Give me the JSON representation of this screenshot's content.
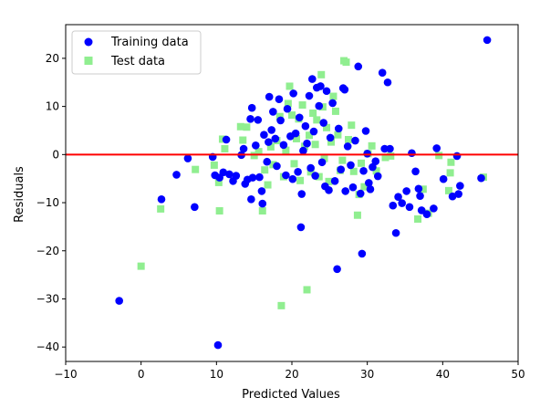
{
  "chart_data": {
    "type": "scatter",
    "title": "",
    "xlabel": "Predicted Values",
    "ylabel": "Residuals",
    "xlim": [
      -10,
      50
    ],
    "ylim": [
      -43,
      27
    ],
    "xticks": [
      -10,
      0,
      10,
      20,
      30,
      40,
      50
    ],
    "yticks": [
      -40,
      -30,
      -20,
      -10,
      0,
      10,
      20
    ],
    "grid": false,
    "legend_position": "top-left",
    "reference_line": {
      "y": 0,
      "color": "#ff0000"
    },
    "series": [
      {
        "name": "Training data",
        "marker": "circle",
        "color": "#0000ff",
        "points": [
          [
            -2.9,
            -30.4
          ],
          [
            2.7,
            -9.3
          ],
          [
            4.7,
            -4.2
          ],
          [
            6.2,
            -0.8
          ],
          [
            7.1,
            -10.9
          ],
          [
            9.5,
            -0.5
          ],
          [
            10.2,
            -39.6
          ],
          [
            9.8,
            -4.3
          ],
          [
            10.4,
            -4.8
          ],
          [
            10.9,
            -3.7
          ],
          [
            11.3,
            3.1
          ],
          [
            11.7,
            -4.1
          ],
          [
            12.2,
            -5.5
          ],
          [
            12.6,
            -4.4
          ],
          [
            13.3,
            -0.1
          ],
          [
            13.6,
            1.2
          ],
          [
            13.8,
            -6.1
          ],
          [
            14.1,
            -5.2
          ],
          [
            14.5,
            7.4
          ],
          [
            14.6,
            -9.3
          ],
          [
            14.8,
            -4.8
          ],
          [
            14.7,
            9.7
          ],
          [
            15.2,
            1.9
          ],
          [
            15.5,
            7.2
          ],
          [
            15.7,
            -4.7
          ],
          [
            16.0,
            -7.6
          ],
          [
            16.1,
            -10.2
          ],
          [
            16.3,
            4.1
          ],
          [
            16.7,
            -1.5
          ],
          [
            16.9,
            2.6
          ],
          [
            17.0,
            12.0
          ],
          [
            17.3,
            5.1
          ],
          [
            17.5,
            8.9
          ],
          [
            17.8,
            3.3
          ],
          [
            18.0,
            -2.4
          ],
          [
            18.3,
            11.5
          ],
          [
            18.5,
            7.1
          ],
          [
            18.9,
            2.0
          ],
          [
            19.2,
            -4.3
          ],
          [
            19.4,
            9.5
          ],
          [
            19.8,
            3.8
          ],
          [
            20.1,
            -5.1
          ],
          [
            20.2,
            12.7
          ],
          [
            20.5,
            4.4
          ],
          [
            20.8,
            -3.6
          ],
          [
            21.0,
            7.7
          ],
          [
            21.2,
            -15.1
          ],
          [
            21.3,
            -8.2
          ],
          [
            21.5,
            0.8
          ],
          [
            21.8,
            5.9
          ],
          [
            22.0,
            2.3
          ],
          [
            22.3,
            12.2
          ],
          [
            22.5,
            -2.8
          ],
          [
            22.7,
            15.7
          ],
          [
            22.9,
            4.8
          ],
          [
            23.1,
            -4.4
          ],
          [
            23.3,
            13.9
          ],
          [
            23.6,
            10.1
          ],
          [
            23.8,
            14.2
          ],
          [
            24.0,
            -1.6
          ],
          [
            24.2,
            6.6
          ],
          [
            24.4,
            -6.6
          ],
          [
            24.6,
            13.2
          ],
          [
            24.9,
            -7.4
          ],
          [
            25.1,
            3.5
          ],
          [
            25.4,
            10.7
          ],
          [
            25.7,
            -5.5
          ],
          [
            26.0,
            -23.8
          ],
          [
            26.2,
            5.4
          ],
          [
            26.5,
            -3.1
          ],
          [
            26.8,
            13.8
          ],
          [
            27.0,
            13.5
          ],
          [
            27.1,
            -7.6
          ],
          [
            27.4,
            1.7
          ],
          [
            27.8,
            -2.2
          ],
          [
            28.1,
            -6.8
          ],
          [
            28.4,
            2.9
          ],
          [
            28.8,
            18.3
          ],
          [
            29.1,
            -8.1
          ],
          [
            29.3,
            -20.6
          ],
          [
            29.5,
            -3.4
          ],
          [
            29.8,
            4.9
          ],
          [
            30.0,
            0.2
          ],
          [
            30.2,
            -5.9
          ],
          [
            30.4,
            -7.2
          ],
          [
            30.7,
            -2.6
          ],
          [
            31.1,
            -1.4
          ],
          [
            31.4,
            -4.5
          ],
          [
            32.0,
            17.0
          ],
          [
            32.3,
            1.2
          ],
          [
            32.7,
            15.0
          ],
          [
            33.0,
            1.2
          ],
          [
            33.4,
            -10.6
          ],
          [
            33.8,
            -16.3
          ],
          [
            34.1,
            -8.8
          ],
          [
            34.6,
            -10.1
          ],
          [
            35.2,
            -7.6
          ],
          [
            35.6,
            -10.9
          ],
          [
            35.9,
            0.3
          ],
          [
            36.4,
            -3.5
          ],
          [
            36.8,
            -7.1
          ],
          [
            37.0,
            -8.6
          ],
          [
            37.2,
            -11.6
          ],
          [
            37.9,
            -12.4
          ],
          [
            38.8,
            -11.2
          ],
          [
            39.2,
            1.3
          ],
          [
            40.1,
            -5.1
          ],
          [
            41.3,
            -8.7
          ],
          [
            41.9,
            -0.3
          ],
          [
            42.1,
            -8.2
          ],
          [
            42.3,
            -6.5
          ],
          [
            45.9,
            23.8
          ],
          [
            45.1,
            -4.9
          ]
        ]
      },
      {
        "name": "Test data",
        "marker": "square",
        "color": "#90ee90",
        "points": [
          [
            0.0,
            -23.2
          ],
          [
            2.6,
            -11.3
          ],
          [
            7.2,
            -3.1
          ],
          [
            9.7,
            -2.2
          ],
          [
            10.4,
            -11.7
          ],
          [
            10.3,
            -5.8
          ],
          [
            10.8,
            3.2
          ],
          [
            11.1,
            1.2
          ],
          [
            13.2,
            5.8
          ],
          [
            13.5,
            3.0
          ],
          [
            14.0,
            5.7
          ],
          [
            15.0,
            -0.2
          ],
          [
            15.6,
            0.6
          ],
          [
            16.1,
            -11.7
          ],
          [
            16.4,
            -3.2
          ],
          [
            16.8,
            -6.3
          ],
          [
            17.2,
            1.6
          ],
          [
            17.5,
            -2.1
          ],
          [
            18.0,
            2.9
          ],
          [
            18.4,
            7.9
          ],
          [
            18.6,
            -31.4
          ],
          [
            18.9,
            -4.6
          ],
          [
            19.2,
            0.9
          ],
          [
            19.5,
            10.6
          ],
          [
            19.7,
            14.2
          ],
          [
            20.0,
            8.2
          ],
          [
            20.3,
            -1.9
          ],
          [
            20.6,
            3.3
          ],
          [
            20.9,
            7.4
          ],
          [
            21.1,
            -5.4
          ],
          [
            21.4,
            10.3
          ],
          [
            21.7,
            1.7
          ],
          [
            22.0,
            -28.1
          ],
          [
            22.3,
            4.0
          ],
          [
            22.5,
            -3.6
          ],
          [
            22.8,
            8.6
          ],
          [
            23.1,
            2.1
          ],
          [
            23.3,
            7.2
          ],
          [
            23.6,
            -4.6
          ],
          [
            23.9,
            16.6
          ],
          [
            24.1,
            9.9
          ],
          [
            24.3,
            -0.8
          ],
          [
            24.6,
            5.6
          ],
          [
            24.9,
            -5.6
          ],
          [
            25.2,
            2.6
          ],
          [
            25.5,
            12.1
          ],
          [
            25.8,
            9.0
          ],
          [
            26.1,
            4.1
          ],
          [
            26.4,
            -3.3
          ],
          [
            26.7,
            -1.2
          ],
          [
            26.9,
            19.5
          ],
          [
            27.2,
            19.2
          ],
          [
            27.5,
            3.1
          ],
          [
            27.9,
            6.1
          ],
          [
            28.2,
            -3.5
          ],
          [
            28.7,
            -12.6
          ],
          [
            28.9,
            -8.3
          ],
          [
            29.2,
            -1.8
          ],
          [
            29.6,
            -6.7
          ],
          [
            30.1,
            0.2
          ],
          [
            30.6,
            1.8
          ],
          [
            31.2,
            -3.4
          ],
          [
            32.4,
            -0.6
          ],
          [
            33.1,
            -0.3
          ],
          [
            36.7,
            -13.4
          ],
          [
            37.4,
            -7.2
          ],
          [
            38.1,
            -12.2
          ],
          [
            39.5,
            -0.2
          ],
          [
            40.8,
            -7.5
          ],
          [
            41.0,
            -3.8
          ],
          [
            41.1,
            -1.6
          ],
          [
            45.4,
            -4.7
          ]
        ]
      }
    ]
  }
}
